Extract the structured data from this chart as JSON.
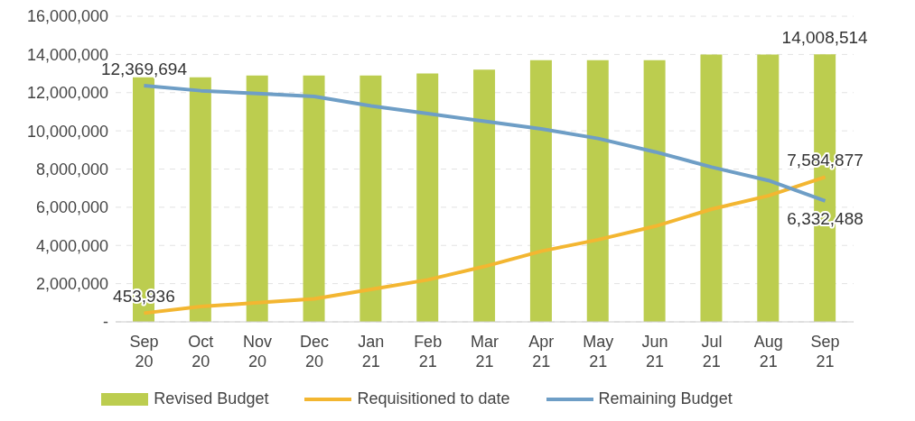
{
  "chart_data": {
    "type": "bar",
    "categories": [
      "Sep 20",
      "Oct 20",
      "Nov 20",
      "Dec 20",
      "Jan 21",
      "Feb 21",
      "Mar 21",
      "Apr 21",
      "May 21",
      "Jun 21",
      "Jul 21",
      "Aug 21",
      "Sep 21"
    ],
    "series": [
      {
        "name": "Revised Budget",
        "color": "#bccd4f",
        "values": [
          12800000,
          12800000,
          12900000,
          12900000,
          12900000,
          13000000,
          13200000,
          13700000,
          13700000,
          13700000,
          14000000,
          14000000,
          14008514
        ],
        "value_labels": [
          null,
          null,
          null,
          null,
          null,
          null,
          null,
          null,
          null,
          null,
          null,
          null,
          "14,008,514"
        ]
      },
      {
        "name": "Requisitioned to date",
        "type": "line",
        "color": "#f3b631",
        "values": [
          453936,
          800000,
          1000000,
          1200000,
          1700000,
          2200000,
          2900000,
          3700000,
          4300000,
          5000000,
          5900000,
          6600000,
          7584877
        ],
        "value_labels": [
          "453,936",
          null,
          null,
          null,
          null,
          null,
          null,
          null,
          null,
          null,
          null,
          null,
          "7,584,877"
        ]
      },
      {
        "name": "Remaining Budget",
        "type": "line",
        "color": "#6e9ec6",
        "values": [
          12369694,
          12100000,
          11950000,
          11800000,
          11300000,
          10900000,
          10500000,
          10100000,
          9600000,
          8900000,
          8100000,
          7400000,
          6332488
        ],
        "value_labels": [
          "12,369,694",
          null,
          null,
          null,
          null,
          null,
          null,
          null,
          null,
          null,
          null,
          null,
          "6,332,488"
        ]
      }
    ],
    "ylim": [
      0,
      16000000
    ],
    "yticks": [
      {
        "value": 0,
        "label": "-"
      },
      {
        "value": 2000000,
        "label": "2,000,000"
      },
      {
        "value": 4000000,
        "label": "4,000,000"
      },
      {
        "value": 6000000,
        "label": "6,000,000"
      },
      {
        "value": 8000000,
        "label": "8,000,000"
      },
      {
        "value": 10000000,
        "label": "10,000,000"
      },
      {
        "value": 12000000,
        "label": "12,000,000"
      },
      {
        "value": 14000000,
        "label": "14,000,000"
      },
      {
        "value": 16000000,
        "label": "16,000,000"
      }
    ],
    "grid": "y",
    "legend": "bottom",
    "marker": "none",
    "line_style": "solid"
  }
}
